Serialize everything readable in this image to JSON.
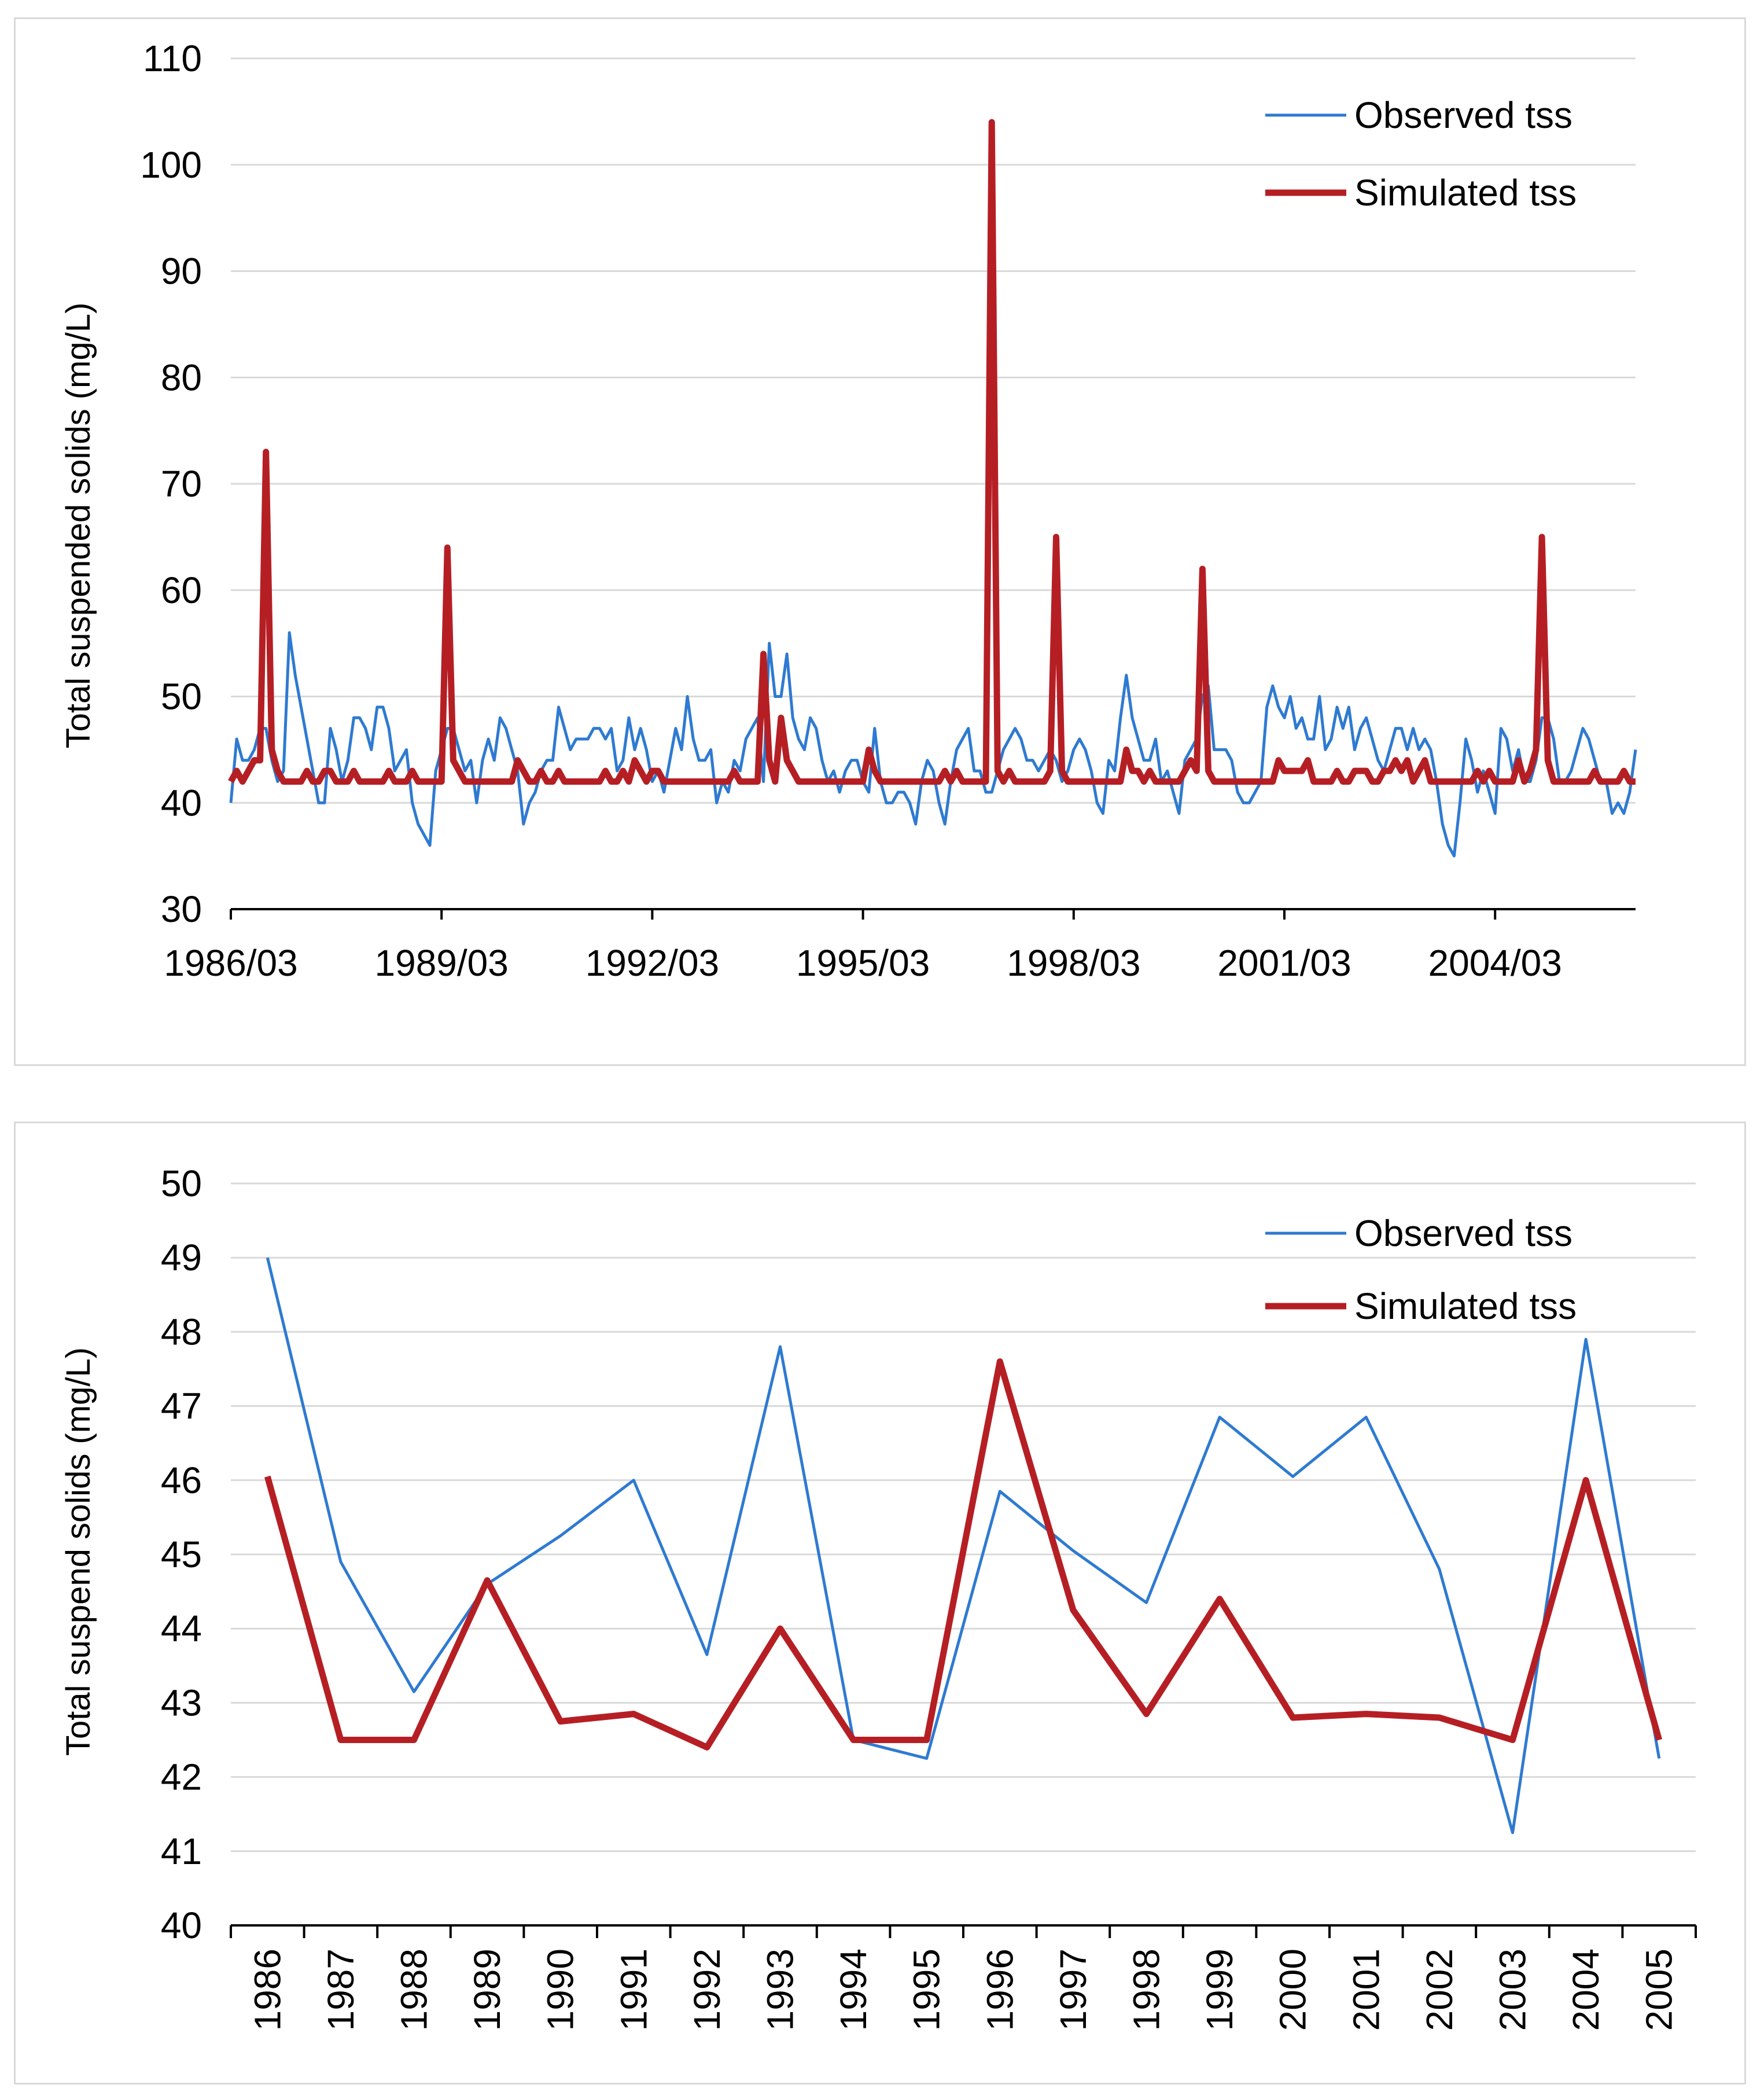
{
  "colors": {
    "observed": "#2e7ad1",
    "simulated": "#b51f24",
    "grid": "#d9d9d9",
    "axis": "#000000"
  },
  "chart_data": [
    {
      "type": "line",
      "title": "",
      "ylabel": "Total suspended solids (mg/L)",
      "xlabel": "",
      "ylim": [
        30,
        110
      ],
      "yticks": [
        "30",
        "40",
        "50",
        "60",
        "70",
        "80",
        "90",
        "100",
        "110"
      ],
      "xticks": [
        "1986/03",
        "1989/03",
        "1992/03",
        "1995/03",
        "1998/03",
        "2001/03",
        "2004/03"
      ],
      "x_start": "1986/03",
      "frequency": "monthly",
      "legend_position": "top-right",
      "series": [
        {
          "name": "Observed tss",
          "values": [
            40,
            46,
            44,
            44,
            45,
            47,
            47,
            44,
            42,
            43,
            56,
            52,
            49,
            46,
            43,
            40,
            40,
            47,
            45,
            42,
            44,
            48,
            48,
            47,
            45,
            49,
            49,
            47,
            43,
            44,
            45,
            40,
            38,
            37,
            36,
            43,
            45,
            47,
            47,
            45,
            43,
            44,
            40,
            44,
            46,
            44,
            48,
            47,
            45,
            43,
            38,
            40,
            41,
            43,
            44,
            44,
            49,
            47,
            45,
            46,
            46,
            46,
            47,
            47,
            46,
            47,
            43,
            44,
            48,
            45,
            47,
            45,
            42,
            43,
            41,
            44,
            47,
            45,
            50,
            46,
            44,
            44,
            45,
            40,
            42,
            41,
            44,
            43,
            46,
            47,
            48,
            42,
            55,
            50,
            50,
            54,
            48,
            46,
            45,
            48,
            47,
            44,
            42,
            43,
            41,
            43,
            44,
            44,
            42,
            41,
            47,
            42,
            40,
            40,
            41,
            41,
            40,
            38,
            42,
            44,
            43,
            40,
            38,
            42,
            45,
            46,
            47,
            43,
            43,
            41,
            41,
            43,
            45,
            46,
            47,
            46,
            44,
            44,
            43,
            44,
            45,
            44,
            42,
            43,
            45,
            46,
            45,
            43,
            40,
            39,
            44,
            43,
            48,
            52,
            48,
            46,
            44,
            44,
            46,
            42,
            43,
            41,
            39,
            44,
            45,
            46,
            50,
            51,
            45,
            45,
            45,
            44,
            41,
            40,
            40,
            41,
            42,
            49,
            51,
            49,
            48,
            50,
            47,
            48,
            46,
            46,
            50,
            45,
            46,
            49,
            47,
            49,
            45,
            47,
            48,
            46,
            44,
            43,
            45,
            47,
            47,
            45,
            47,
            45,
            46,
            45,
            42,
            38,
            36,
            35,
            40,
            46,
            44,
            41,
            43,
            41,
            39,
            47,
            46,
            43,
            45,
            42,
            42,
            44,
            48,
            48,
            46,
            42,
            42,
            43,
            45,
            47,
            46,
            44,
            42,
            42,
            39,
            40,
            39,
            41,
            45
          ]
        },
        {
          "name": "Simulated tss",
          "values": [
            42,
            43,
            42,
            43,
            44,
            44,
            73,
            45,
            43,
            42,
            42,
            42,
            42,
            43,
            42,
            42,
            43,
            43,
            42,
            42,
            42,
            43,
            42,
            42,
            42,
            42,
            42,
            43,
            42,
            42,
            42,
            43,
            42,
            42,
            42,
            42,
            42,
            64,
            44,
            43,
            42,
            42,
            42,
            42,
            42,
            42,
            42,
            42,
            42,
            44,
            43,
            42,
            42,
            43,
            42,
            42,
            43,
            42,
            42,
            42,
            42,
            42,
            42,
            42,
            43,
            42,
            42,
            43,
            42,
            44,
            43,
            42,
            43,
            43,
            42,
            42,
            42,
            42,
            42,
            42,
            42,
            42,
            42,
            42,
            42,
            42,
            43,
            42,
            42,
            42,
            42,
            54,
            44,
            42,
            48,
            44,
            43,
            42,
            42,
            42,
            42,
            42,
            42,
            42,
            42,
            42,
            42,
            42,
            42,
            45,
            43,
            42,
            42,
            42,
            42,
            42,
            42,
            42,
            42,
            42,
            42,
            42,
            43,
            42,
            43,
            42,
            42,
            42,
            42,
            42,
            104,
            43,
            42,
            43,
            42,
            42,
            42,
            42,
            42,
            42,
            43,
            65,
            43,
            42,
            42,
            42,
            42,
            42,
            42,
            42,
            42,
            42,
            42,
            45,
            43,
            43,
            42,
            43,
            42,
            42,
            42,
            42,
            42,
            43,
            44,
            43,
            62,
            43,
            42,
            42,
            42,
            42,
            42,
            42,
            42,
            42,
            42,
            42,
            42,
            44,
            43,
            43,
            43,
            43,
            44,
            42,
            42,
            42,
            42,
            43,
            42,
            42,
            43,
            43,
            43,
            42,
            42,
            43,
            43,
            44,
            43,
            44,
            42,
            43,
            44,
            42,
            42,
            42,
            42,
            42,
            42,
            42,
            42,
            43,
            42,
            43,
            42,
            42,
            42,
            42,
            44,
            42,
            43,
            45,
            65,
            44,
            42,
            42,
            42,
            42,
            42,
            42,
            42,
            43,
            42,
            42,
            42,
            42,
            43,
            42,
            42
          ]
        }
      ]
    },
    {
      "type": "line",
      "title": "",
      "ylabel": "Total suspend solids (mg/L)",
      "xlabel": "",
      "ylim": [
        40,
        50
      ],
      "yticks": [
        "40",
        "41",
        "42",
        "43",
        "44",
        "45",
        "46",
        "47",
        "48",
        "49",
        "50"
      ],
      "categories": [
        "1986",
        "1987",
        "1988",
        "1989",
        "1990",
        "1991",
        "1992",
        "1993",
        "1994",
        "1995",
        "1996",
        "1997",
        "1998",
        "1999",
        "2000",
        "2001",
        "2002",
        "2003",
        "2004",
        "2005"
      ],
      "legend_position": "top-right",
      "series": [
        {
          "name": "Observed tss",
          "values": [
            49.0,
            44.9,
            43.15,
            44.6,
            45.25,
            46.0,
            43.65,
            47.8,
            42.5,
            42.25,
            45.85,
            45.05,
            44.35,
            46.85,
            46.05,
            46.85,
            44.8,
            41.25,
            47.9,
            42.25
          ]
        },
        {
          "name": "Simulated tss",
          "values": [
            46.05,
            42.5,
            42.5,
            44.65,
            42.75,
            42.85,
            42.4,
            44.0,
            42.5,
            42.5,
            47.6,
            44.25,
            42.85,
            44.4,
            42.8,
            42.85,
            42.8,
            42.5,
            46.0,
            42.5
          ]
        }
      ]
    }
  ]
}
